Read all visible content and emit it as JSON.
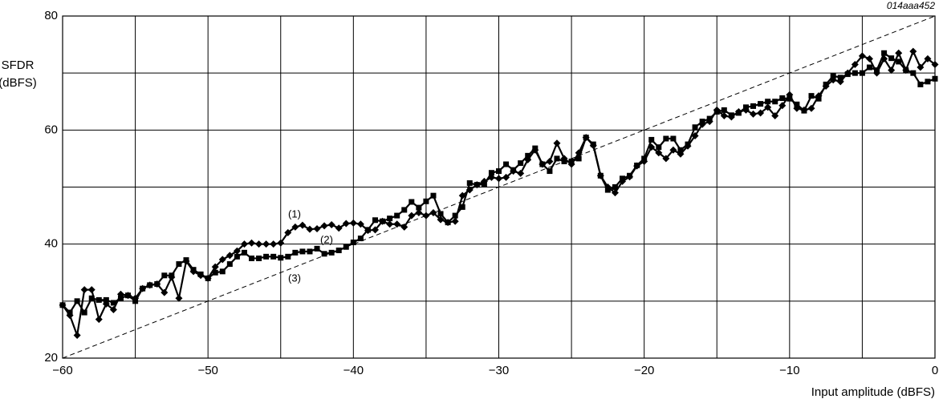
{
  "chart_data": {
    "type": "line",
    "figure_id": "014aaa452",
    "ylabel": [
      "SFDR",
      "(dBFS)"
    ],
    "xlabel": "Input amplitude (dBFS)",
    "xlim": [
      -60,
      0
    ],
    "ylim": [
      20,
      80
    ],
    "xticks": [
      {
        "value": -60,
        "label": "−60"
      },
      {
        "value": -50,
        "label": "−50"
      },
      {
        "value": -40,
        "label": "−40"
      },
      {
        "value": -30,
        "label": "−30"
      },
      {
        "value": -20,
        "label": "−20"
      },
      {
        "value": -10,
        "label": "−10"
      },
      0
    ],
    "xminor": [
      -55,
      -45,
      -35,
      -25,
      -15,
      -5
    ],
    "yticks": [
      20,
      40,
      60,
      80
    ],
    "yminor": [
      30,
      50,
      70
    ],
    "grid": true,
    "series": [
      {
        "name": "(1)",
        "color": "#000000",
        "marker": "diamond",
        "dash": false,
        "x": [
          -60,
          -59.5,
          -59,
          -58.5,
          -58,
          -57.5,
          -57,
          -56.5,
          -56,
          -55.5,
          -55,
          -54.5,
          -54,
          -53.5,
          -53,
          -52.5,
          -52,
          -51.5,
          -51,
          -50.5,
          -50,
          -49.5,
          -49,
          -48.5,
          -48,
          -47.5,
          -47,
          -46.5,
          -46,
          -45.5,
          -45,
          -44.5,
          -44,
          -43.5,
          -43,
          -42.5,
          -42,
          -41.5,
          -41,
          -40.5,
          -40,
          -39.5,
          -39,
          -38.5,
          -38,
          -37.5,
          -37,
          -36.5,
          -36,
          -35.5,
          -35,
          -34.5,
          -34,
          -33.5,
          -33,
          -32.5,
          -32,
          -31.5,
          -31,
          -30.5,
          -30,
          -29.5,
          -29,
          -28.5,
          -28,
          -27.5,
          -27,
          -26.5,
          -26,
          -25.5,
          -25,
          -24.5,
          -24,
          -23.5,
          -23,
          -22.5,
          -22,
          -21.5,
          -21,
          -20.5,
          -20,
          -19.5,
          -19,
          -18.5,
          -18,
          -17.5,
          -17,
          -16.5,
          -16,
          -15.5,
          -15,
          -14.5,
          -14,
          -13.5,
          -13,
          -12.5,
          -12,
          -11.5,
          -11,
          -10.5,
          -10,
          -9.5,
          -9,
          -8.5,
          -8,
          -7.5,
          -7,
          -6.5,
          -6,
          -5.5,
          -5,
          -4.5,
          -4,
          -3.5,
          -3,
          -2.5,
          -2,
          -1.5,
          -1,
          -0.5,
          0
        ],
        "values": [
          29.3,
          27.5,
          24,
          32,
          32,
          26.8,
          29.5,
          28.5,
          31.2,
          31,
          30.5,
          32.2,
          32.8,
          33,
          31.5,
          34.2,
          30.5,
          37,
          35.2,
          34.5,
          34,
          36,
          37.3,
          38,
          38.8,
          40,
          40.2,
          40,
          40,
          40,
          40.2,
          42,
          43,
          43.3,
          42.6,
          42.7,
          43.2,
          43.4,
          42.8,
          43.6,
          43.7,
          43.5,
          42.4,
          42.5,
          44,
          43.5,
          43.5,
          43,
          45,
          45.5,
          45,
          45.5,
          44.3,
          43.8,
          44,
          48.5,
          49.5,
          50.4,
          51,
          51.7,
          51.5,
          51.7,
          52.8,
          52.4,
          54.8,
          56.5,
          54,
          54.5,
          57.7,
          55,
          54,
          56,
          58.7,
          57.3,
          52,
          50,
          49,
          51,
          51.8,
          53.7,
          54.5,
          57,
          56,
          55,
          56.5,
          55.8,
          57.2,
          59,
          61,
          61.5,
          63.5,
          62.5,
          62.3,
          63.2,
          63.5,
          62.8,
          63,
          64,
          62.5,
          64.3,
          66.2,
          63.8,
          63.5,
          63.8,
          66,
          67.7,
          68.8,
          68.5,
          70,
          71.5,
          73,
          72.5,
          70,
          72.5,
          70.5,
          73.5,
          70.5,
          73.8,
          71,
          72.5,
          71.5
        ]
      },
      {
        "name": "(2)",
        "color": "#000000",
        "marker": "square",
        "dash": false,
        "x": [
          -60,
          -59.5,
          -59,
          -58.5,
          -58,
          -57.5,
          -57,
          -56.5,
          -56,
          -55.5,
          -55,
          -54.5,
          -54,
          -53.5,
          -53,
          -52.5,
          -52,
          -51.5,
          -51,
          -50.5,
          -50,
          -49.5,
          -49,
          -48.5,
          -48,
          -47.5,
          -47,
          -46.5,
          -46,
          -45.5,
          -45,
          -44.5,
          -44,
          -43.5,
          -43,
          -42.5,
          -42,
          -41.5,
          -41,
          -40.5,
          -40,
          -39.5,
          -39,
          -38.5,
          -38,
          -37.5,
          -37,
          -36.5,
          -36,
          -35.5,
          -35,
          -34.5,
          -34,
          -33.5,
          -33,
          -32.5,
          -32,
          -31.5,
          -31,
          -30.5,
          -30,
          -29.5,
          -29,
          -28.5,
          -28,
          -27.5,
          -27,
          -26.5,
          -26,
          -25.5,
          -25,
          -24.5,
          -24,
          -23.5,
          -23,
          -22.5,
          -22,
          -21.5,
          -21,
          -20.5,
          -20,
          -19.5,
          -19,
          -18.5,
          -18,
          -17.5,
          -17,
          -16.5,
          -16,
          -15.5,
          -15,
          -14.5,
          -14,
          -13.5,
          -13,
          -12.5,
          -12,
          -11.5,
          -11,
          -10.5,
          -10,
          -9.5,
          -9,
          -8.5,
          -8,
          -7.5,
          -7,
          -6.5,
          -6,
          -5.5,
          -5,
          -4.5,
          -4,
          -3.5,
          -3,
          -2.5,
          -2,
          -1.5,
          -1,
          -0.5,
          0
        ],
        "values": [
          29.3,
          28,
          30,
          28,
          30.5,
          30.2,
          30.2,
          29.7,
          30.5,
          31,
          30,
          32.2,
          32.8,
          33,
          34.5,
          34.5,
          36.5,
          37.2,
          35.5,
          34.7,
          34,
          35,
          35.2,
          36.5,
          37.8,
          38.5,
          37.5,
          37.5,
          37.8,
          37.8,
          37.6,
          37.8,
          38.5,
          38.7,
          38.7,
          39.2,
          38.3,
          38.5,
          38.9,
          39.5,
          40.3,
          41,
          42.5,
          44.2,
          44,
          44.5,
          45,
          46,
          47.4,
          46.4,
          47.5,
          48.5,
          45.3,
          43.8,
          45,
          46.5,
          50.7,
          50.4,
          50.5,
          52.5,
          52.8,
          54,
          53,
          54.2,
          55.5,
          56.8,
          54,
          52.8,
          55,
          54.5,
          54.5,
          55,
          58.7,
          57.5,
          52,
          49.5,
          50,
          51.5,
          52,
          53.8,
          55,
          58.3,
          57,
          58.5,
          58.5,
          56.5,
          57.5,
          60.5,
          61.5,
          62,
          63.2,
          63.5,
          62.6,
          63,
          64,
          64.2,
          64.6,
          65,
          65,
          65.6,
          65.5,
          64.5,
          63.4,
          66,
          65.5,
          68,
          69.5,
          69.2,
          69.8,
          70,
          70,
          71,
          70.5,
          73.5,
          72.6,
          72,
          70.5,
          70,
          68,
          68.5,
          69
        ]
      },
      {
        "name": "(3)",
        "color": "#000000",
        "marker": "none",
        "dash": true,
        "x": [
          -60,
          0
        ],
        "values": [
          20,
          80
        ]
      }
    ]
  }
}
